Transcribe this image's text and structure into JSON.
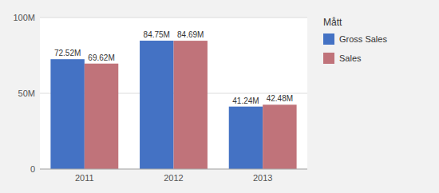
{
  "chart_data": {
    "type": "bar",
    "categories": [
      "2011",
      "2012",
      "2013"
    ],
    "series": [
      {
        "name": "Gross Sales",
        "color": "#4472C4",
        "values": [
          72.52,
          84.75,
          41.24
        ],
        "value_labels": [
          "72.52M",
          "84.75M",
          "41.24M"
        ]
      },
      {
        "name": "Sales",
        "color": "#C0737A",
        "values": [
          69.62,
          84.69,
          42.48
        ],
        "value_labels": [
          "69.62M",
          "84.69M",
          "42.48M"
        ]
      }
    ],
    "ylim": [
      0,
      100
    ],
    "yticks": [
      0,
      {
        "value": 50,
        "label": "50M"
      },
      {
        "value": 100,
        "label": "100M"
      }
    ],
    "grid": true,
    "data_labels": true,
    "legend": "right",
    "legend_title": "Mått"
  }
}
